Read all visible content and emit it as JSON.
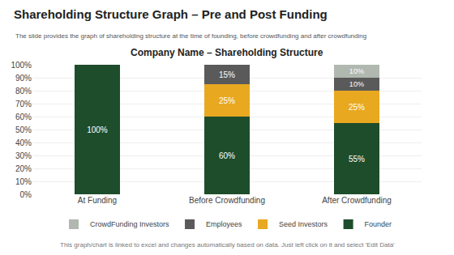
{
  "chart_data": {
    "type": "bar",
    "title": "Shareholding Structure Graph – Pre and Post Funding",
    "subtitle": "The slide provides the graph of shareholding structure at the time of founding, before crowdfunding and after crowdfunding",
    "annotations": [
      "Company Name – Shareholding Structure",
      "This graph/chart is linked to excel and changes automatically based on data. Just left click on it and select 'Edit Data'"
    ],
    "categories": [
      "At Funding",
      "Before Crowdfunding",
      "After Crowdfunding"
    ],
    "series": [
      {
        "name": "Founder",
        "color": "#1e4d2b",
        "values": [
          100,
          60,
          55
        ],
        "value_labels": [
          "100%",
          "60%",
          "55%"
        ]
      },
      {
        "name": "Seed Investors",
        "color": "#e8a820",
        "values": [
          0,
          25,
          25
        ],
        "value_labels": [
          null,
          "25%",
          "25%"
        ]
      },
      {
        "name": "Employees",
        "color": "#5a5a5a",
        "values": [
          0,
          15,
          10
        ],
        "value_labels": [
          null,
          "15%",
          "10%"
        ]
      },
      {
        "name": "CrowdFunding Investors",
        "color": "#b0b8b0",
        "values": [
          0,
          0,
          10
        ],
        "value_labels": [
          null,
          null,
          "10%"
        ]
      }
    ],
    "stacked": true,
    "data_labels": true,
    "grid": true,
    "legend": "bottom",
    "ylim": [
      0,
      100
    ],
    "yticks": [
      {
        "value": 0,
        "label": "0%"
      },
      {
        "value": 10,
        "label": "10%"
      },
      {
        "value": 20,
        "label": "20%"
      },
      {
        "value": 30,
        "label": "30%"
      },
      {
        "value": 40,
        "label": "40%"
      },
      {
        "value": 50,
        "label": "50%"
      },
      {
        "value": 60,
        "label": "60%"
      },
      {
        "value": 70,
        "label": "70%"
      },
      {
        "value": 80,
        "label": "80%"
      },
      {
        "value": 90,
        "label": "90%"
      },
      {
        "value": 100,
        "label": "100%"
      }
    ]
  }
}
